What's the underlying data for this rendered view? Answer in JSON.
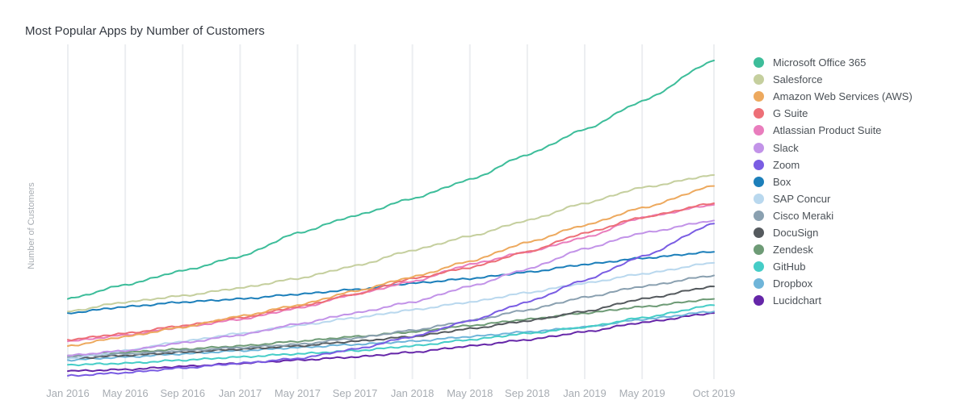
{
  "chart_data": {
    "type": "line",
    "title": "Most Popular Apps by Number of Customers",
    "xlabel": "",
    "ylabel": "Number of Customers",
    "y_axis_ticks_shown": false,
    "ylim": [
      0,
      100
    ],
    "grid": "vertical",
    "legend_position": "right",
    "x_ticks": [
      "Jan 2016",
      "May 2016",
      "Sep 2016",
      "Jan 2017",
      "May 2017",
      "Sep 2017",
      "Jan 2018",
      "May 2018",
      "Sep 2018",
      "Jan 2019",
      "May 2019",
      "Oct 2019"
    ],
    "x_tick_months": [
      0,
      4,
      8,
      12,
      16,
      20,
      24,
      28,
      32,
      36,
      40,
      45
    ],
    "x_range_months": [
      0,
      45
    ],
    "series": [
      {
        "name": "Microsoft Office 365",
        "color": "#3dbd9a",
        "anchors": [
          [
            0,
            24
          ],
          [
            4,
            28.5
          ],
          [
            8,
            33
          ],
          [
            12,
            37.5
          ],
          [
            16,
            45
          ],
          [
            20,
            50.5
          ],
          [
            24,
            56
          ],
          [
            28,
            62
          ],
          [
            32,
            70
          ],
          [
            36,
            78
          ],
          [
            40,
            87
          ],
          [
            45,
            100
          ]
        ]
      },
      {
        "name": "Salesforce",
        "color": "#c5cf9e",
        "anchors": [
          [
            0,
            20
          ],
          [
            4,
            23
          ],
          [
            8,
            25
          ],
          [
            12,
            27.5
          ],
          [
            16,
            30.5
          ],
          [
            20,
            34.5
          ],
          [
            24,
            39.5
          ],
          [
            28,
            44
          ],
          [
            32,
            49
          ],
          [
            36,
            54.5
          ],
          [
            40,
            59.5
          ],
          [
            45,
            63.5
          ]
        ]
      },
      {
        "name": "Amazon Web Services (AWS)",
        "color": "#eda95e",
        "anchors": [
          [
            0,
            9
          ],
          [
            4,
            12
          ],
          [
            8,
            15
          ],
          [
            12,
            18.5
          ],
          [
            16,
            22
          ],
          [
            20,
            26.5
          ],
          [
            24,
            31
          ],
          [
            28,
            36
          ],
          [
            32,
            42
          ],
          [
            36,
            47.5
          ],
          [
            40,
            53
          ],
          [
            45,
            60
          ]
        ]
      },
      {
        "name": "G Suite",
        "color": "#ed6f77",
        "anchors": [
          [
            0,
            11
          ],
          [
            4,
            13
          ],
          [
            8,
            15.5
          ],
          [
            12,
            18
          ],
          [
            16,
            21.5
          ],
          [
            20,
            25.5
          ],
          [
            24,
            30.5
          ],
          [
            28,
            34
          ],
          [
            32,
            39
          ],
          [
            36,
            45
          ],
          [
            40,
            50
          ],
          [
            45,
            54.5
          ]
        ]
      },
      {
        "name": "Atlassian Product Suite",
        "color": "#e97dbd",
        "anchors": [
          [
            0,
            10.5
          ],
          [
            4,
            12.5
          ],
          [
            8,
            15
          ],
          [
            12,
            17.5
          ],
          [
            16,
            21
          ],
          [
            20,
            25.5
          ],
          [
            24,
            29.5
          ],
          [
            28,
            35
          ],
          [
            32,
            39
          ],
          [
            36,
            43.5
          ],
          [
            40,
            50
          ],
          [
            45,
            54
          ]
        ]
      },
      {
        "name": "Slack",
        "color": "#c293e8",
        "anchors": [
          [
            0,
            6
          ],
          [
            4,
            7.5
          ],
          [
            8,
            10
          ],
          [
            12,
            12.5
          ],
          [
            16,
            16
          ],
          [
            20,
            19.5
          ],
          [
            24,
            23
          ],
          [
            28,
            28
          ],
          [
            32,
            33.5
          ],
          [
            36,
            40
          ],
          [
            40,
            45
          ],
          [
            45,
            49
          ]
        ]
      },
      {
        "name": "Zoom",
        "color": "#7a5de3",
        "anchors": [
          [
            0,
            -0.5
          ],
          [
            4,
            0.5
          ],
          [
            8,
            2
          ],
          [
            12,
            3.5
          ],
          [
            16,
            5
          ],
          [
            20,
            8
          ],
          [
            24,
            12
          ],
          [
            28,
            17
          ],
          [
            32,
            23
          ],
          [
            36,
            30
          ],
          [
            40,
            37.5
          ],
          [
            45,
            48
          ]
        ]
      },
      {
        "name": "Box",
        "color": "#1c7fba",
        "anchors": [
          [
            0,
            19.5
          ],
          [
            4,
            21.5
          ],
          [
            8,
            23
          ],
          [
            12,
            24
          ],
          [
            16,
            25.5
          ],
          [
            20,
            27
          ],
          [
            24,
            29
          ],
          [
            28,
            30.5
          ],
          [
            32,
            32.5
          ],
          [
            36,
            35
          ],
          [
            40,
            37
          ],
          [
            45,
            39
          ]
        ]
      },
      {
        "name": "SAP Concur",
        "color": "#b9d8ee",
        "anchors": [
          [
            0,
            5
          ],
          [
            4,
            7.5
          ],
          [
            8,
            10.5
          ],
          [
            12,
            13
          ],
          [
            16,
            15.5
          ],
          [
            20,
            18
          ],
          [
            24,
            20.5
          ],
          [
            28,
            23
          ],
          [
            32,
            26
          ],
          [
            36,
            29
          ],
          [
            40,
            32
          ],
          [
            45,
            35.5
          ]
        ]
      },
      {
        "name": "Cisco Meraki",
        "color": "#8aa0b0",
        "anchors": [
          [
            0,
            5.5
          ],
          [
            4,
            6.5
          ],
          [
            8,
            7.5
          ],
          [
            12,
            8.5
          ],
          [
            16,
            9.5
          ],
          [
            20,
            11.5
          ],
          [
            24,
            14
          ],
          [
            28,
            17
          ],
          [
            32,
            20.5
          ],
          [
            36,
            24.5
          ],
          [
            40,
            28
          ],
          [
            45,
            31.5
          ]
        ]
      },
      {
        "name": "DocuSign",
        "color": "#555a5e",
        "anchors": [
          [
            0,
            5
          ],
          [
            4,
            6
          ],
          [
            8,
            7
          ],
          [
            12,
            8
          ],
          [
            16,
            9
          ],
          [
            20,
            10.5
          ],
          [
            24,
            12
          ],
          [
            28,
            14.5
          ],
          [
            32,
            17
          ],
          [
            36,
            20
          ],
          [
            40,
            24
          ],
          [
            45,
            28
          ]
        ]
      },
      {
        "name": "Zendesk",
        "color": "#6e9b76",
        "anchors": [
          [
            0,
            6
          ],
          [
            4,
            7
          ],
          [
            8,
            8
          ],
          [
            12,
            9
          ],
          [
            16,
            10.5
          ],
          [
            20,
            12
          ],
          [
            24,
            13.5
          ],
          [
            28,
            15.5
          ],
          [
            32,
            17.5
          ],
          [
            36,
            19.5
          ],
          [
            40,
            21.5
          ],
          [
            45,
            24
          ]
        ]
      },
      {
        "name": "GitHub",
        "color": "#45cdc7",
        "anchors": [
          [
            0,
            3
          ],
          [
            4,
            3.5
          ],
          [
            8,
            4.5
          ],
          [
            12,
            5.5
          ],
          [
            16,
            6.5
          ],
          [
            20,
            7.5
          ],
          [
            24,
            9
          ],
          [
            28,
            11
          ],
          [
            32,
            13
          ],
          [
            36,
            15
          ],
          [
            40,
            18
          ],
          [
            45,
            22
          ]
        ]
      },
      {
        "name": "Dropbox",
        "color": "#6fb5d9",
        "anchors": [
          [
            0,
            4.5
          ],
          [
            4,
            5.5
          ],
          [
            8,
            6.5
          ],
          [
            12,
            7.5
          ],
          [
            16,
            8.5
          ],
          [
            20,
            9.5
          ],
          [
            24,
            10.5
          ],
          [
            28,
            12
          ],
          [
            32,
            13.5
          ],
          [
            36,
            15
          ],
          [
            40,
            17.5
          ],
          [
            45,
            20
          ]
        ]
      },
      {
        "name": "Lucidchart",
        "color": "#6526a8",
        "anchors": [
          [
            0,
            1
          ],
          [
            4,
            1.5
          ],
          [
            8,
            2.5
          ],
          [
            12,
            3.5
          ],
          [
            16,
            4.5
          ],
          [
            20,
            5.5
          ],
          [
            24,
            7
          ],
          [
            28,
            9
          ],
          [
            32,
            11
          ],
          [
            36,
            13.5
          ],
          [
            40,
            16.5
          ],
          [
            45,
            19.5
          ]
        ]
      }
    ]
  }
}
